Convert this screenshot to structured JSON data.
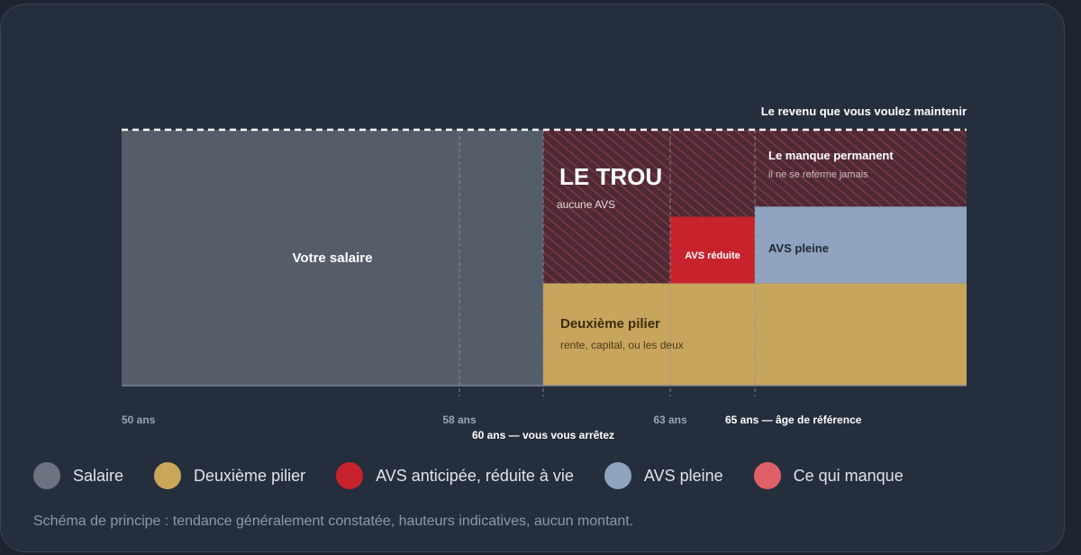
{
  "chart_data": {
    "type": "area",
    "title": "",
    "x_ticks": [
      {
        "label": "50 ans",
        "age": 50
      },
      {
        "label": "58 ans",
        "age": 58
      },
      {
        "label": "63 ans",
        "age": 63
      }
    ],
    "x_markers": [
      {
        "label": "60 ans — vous vous arrêtez",
        "age": 60
      },
      {
        "label": "65 ans — âge de référence",
        "age": 65
      }
    ],
    "x_range": [
      50,
      70
    ],
    "y_range": [
      0,
      1
    ],
    "target_line": {
      "label": "Le revenu que vous voulez maintenir",
      "level": 1.0
    },
    "segments": [
      {
        "key": "salaire",
        "from": 50,
        "to": 60,
        "bottom": 0,
        "top": 1.0,
        "label": "Votre salaire"
      },
      {
        "key": "pilier2",
        "from": 60,
        "to": 70,
        "bottom": 0,
        "top": 0.4,
        "label": "Deuxième pilier",
        "sub": "rente, capital, ou les deux"
      },
      {
        "key": "trou",
        "from": 60,
        "to": 63,
        "bottom": 0.4,
        "top": 1.0,
        "label": "LE TROU",
        "sub": "aucune AVS"
      },
      {
        "key": "trou2",
        "from": 63,
        "to": 65,
        "bottom": 0.66,
        "top": 1.0
      },
      {
        "key": "avs_reduite",
        "from": 63,
        "to": 65,
        "bottom": 0.4,
        "top": 0.66,
        "label": "AVS réduite"
      },
      {
        "key": "avs_pleine",
        "from": 65,
        "to": 70,
        "bottom": 0.4,
        "top": 0.7,
        "label": "AVS pleine"
      },
      {
        "key": "manque",
        "from": 65,
        "to": 70,
        "bottom": 0.7,
        "top": 1.0,
        "label": "Le manque permanent",
        "sub": "il ne se referme jamais"
      }
    ]
  },
  "legend": [
    {
      "label": "Salaire",
      "color": "#6b7380"
    },
    {
      "label": "Deuxième pilier",
      "color": "#c9a65a"
    },
    {
      "label": "AVS anticipée, réduite à vie",
      "color": "#c8222c"
    },
    {
      "label": "AVS pleine",
      "color": "#8fa3bf"
    },
    {
      "label": "Ce qui manque",
      "color": "#e0606a"
    }
  ],
  "footnote": "Schéma de principe : tendance généralement constatée, hauteurs indicatives, aucun montant.",
  "colors": {
    "salaire": "#555d6b",
    "pilier2": "#c8a55c",
    "trou_bg": "#4f2a35",
    "trou_stripe": "#7a3a46",
    "avs_reduite": "#c8222c",
    "avs_pleine": "#8fa3bf",
    "grid": "#8c96a4"
  }
}
